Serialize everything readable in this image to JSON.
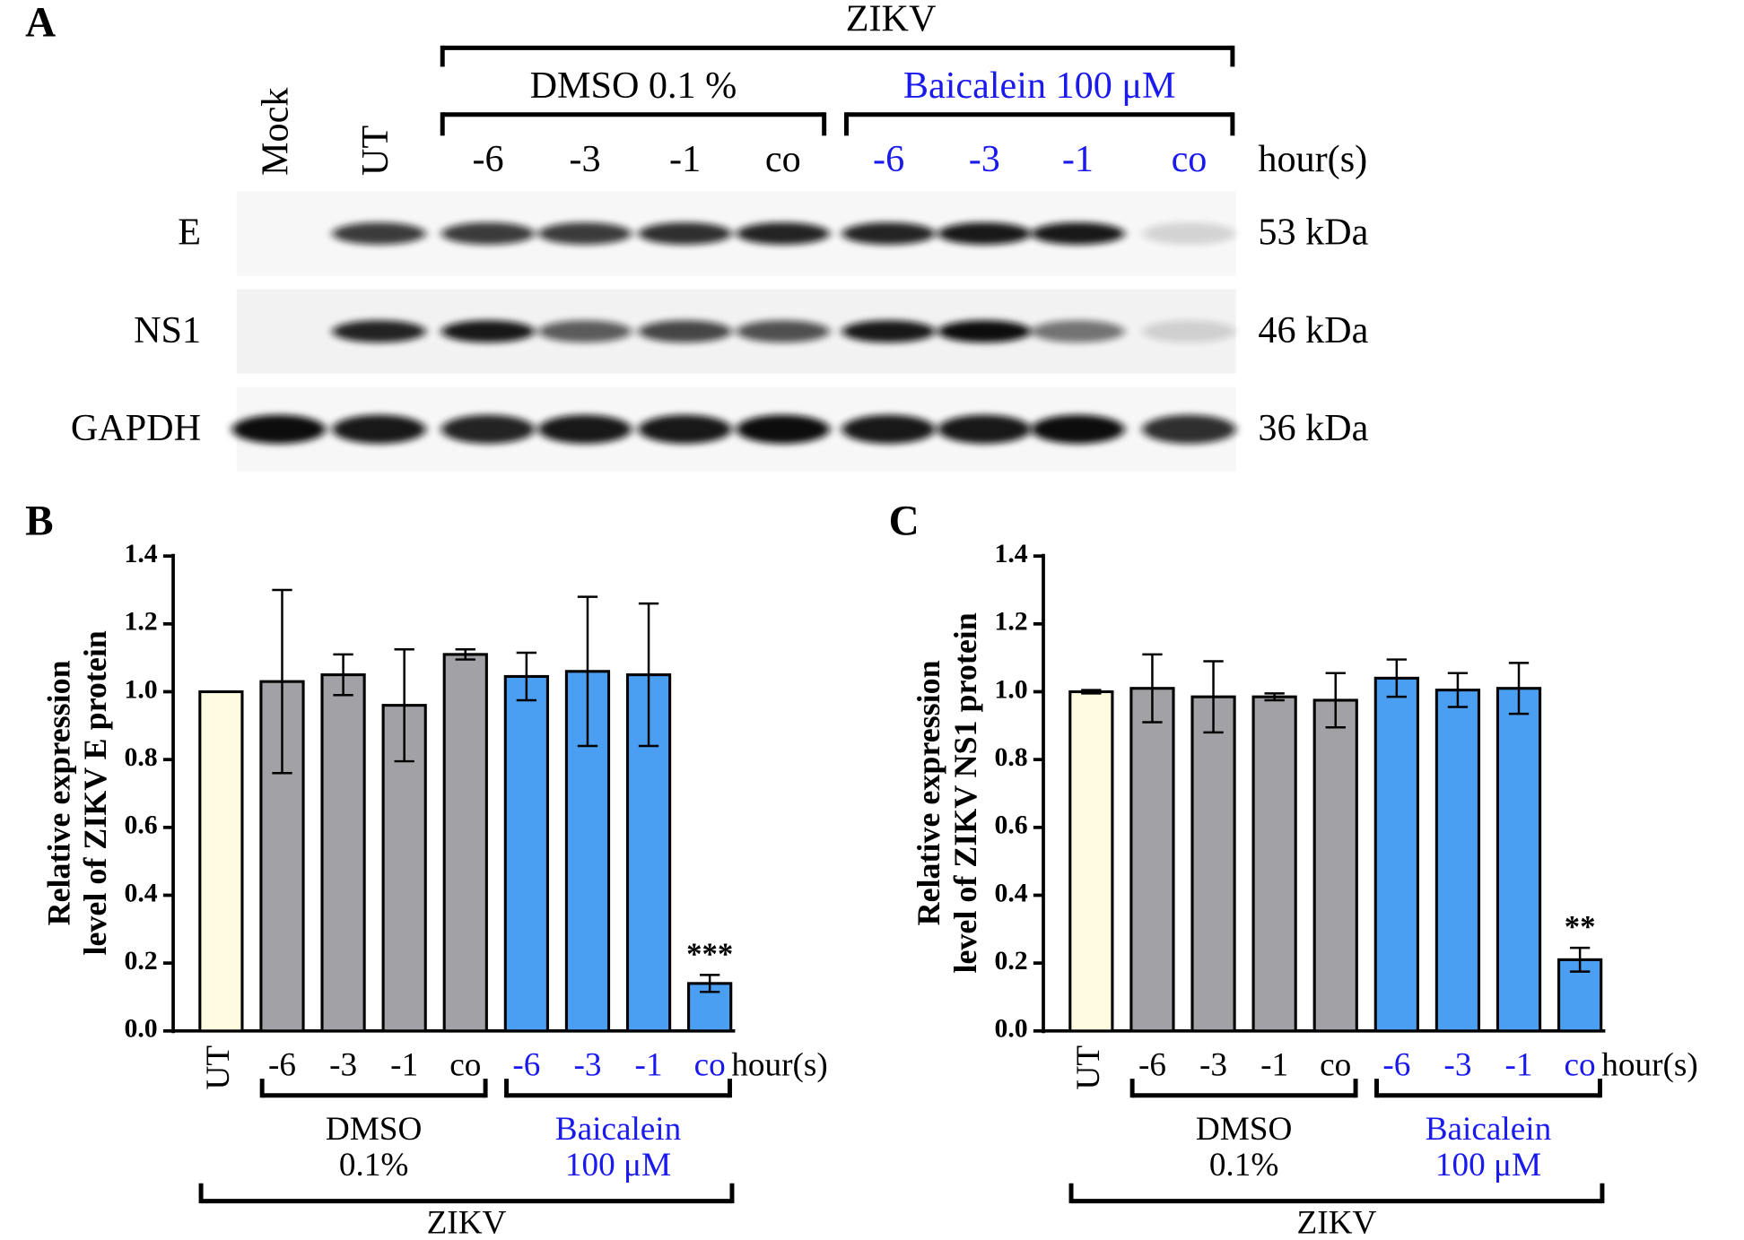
{
  "panel_labels": [
    "A",
    "B",
    "C"
  ],
  "blot": {
    "group": "ZIKV",
    "treatments": [
      "DMSO 0.1 %",
      "Baicalein 100 μM"
    ],
    "treatment_colors": [
      "#000000",
      "#1a1aee"
    ],
    "lanes": [
      "Mock",
      "UT",
      "-6",
      "-3",
      "-1",
      "co",
      "-6",
      "-3",
      "-1",
      "co"
    ],
    "lane_colors": [
      "#000000",
      "#000000",
      "#000000",
      "#000000",
      "#000000",
      "#000000",
      "#1a1aee",
      "#1a1aee",
      "#1a1aee",
      "#1a1aee"
    ],
    "time_unit": "hour(s)",
    "rows": [
      {
        "name": "E",
        "size": "53 kDa"
      },
      {
        "name": "NS1",
        "size": "46 kDa"
      },
      {
        "name": "GAPDH",
        "size": "36 kDa"
      }
    ]
  },
  "chart_data": [
    {
      "type": "bar",
      "ylabel": [
        "Relative expression",
        "level of ZIKV E protein"
      ],
      "categories": [
        "UT",
        "-6",
        "-3",
        "-1",
        "co",
        "-6",
        "-3",
        "-1",
        "co"
      ],
      "label_colors": [
        "#000000",
        "#000000",
        "#000000",
        "#000000",
        "#000000",
        "#1a1aee",
        "#1a1aee",
        "#1a1aee",
        "#1a1aee"
      ],
      "values": [
        1.0,
        1.03,
        1.05,
        0.96,
        1.11,
        1.045,
        1.06,
        1.05,
        0.14
      ],
      "errors": [
        0,
        0.27,
        0.06,
        0.165,
        0.015,
        0.07,
        0.22,
        0.21,
        0.025
      ],
      "colors": [
        "#fffbe0",
        "#a2a2a6",
        "#a2a2a6",
        "#a2a2a6",
        "#a2a2a6",
        "#4a9ff2",
        "#4a9ff2",
        "#4a9ff2",
        "#4a9ff2"
      ],
      "significance": [
        null,
        null,
        null,
        null,
        null,
        null,
        null,
        null,
        "***"
      ],
      "x_unit": "hour(s)",
      "groups": [
        {
          "lines": [
            "DMSO",
            "0.1%"
          ],
          "color": "#000000"
        },
        {
          "lines": [
            "Baicalein",
            "100 μM"
          ],
          "color": "#1a1aee"
        }
      ],
      "group_label": "ZIKV",
      "ylim": [
        0,
        1.4
      ],
      "yticks": [
        {
          "value": 0,
          "label": "0.0"
        },
        0.2,
        0.4,
        0.6,
        0.8,
        {
          "value": 1,
          "label": "1.0"
        },
        1.2,
        1.4
      ]
    },
    {
      "type": "bar",
      "ylabel": [
        "Relative expression",
        "level of ZIKV NS1 protein"
      ],
      "categories": [
        "UT",
        "-6",
        "-3",
        "-1",
        "co",
        "-6",
        "-3",
        "-1",
        "co"
      ],
      "label_colors": [
        "#000000",
        "#000000",
        "#000000",
        "#000000",
        "#000000",
        "#1a1aee",
        "#1a1aee",
        "#1a1aee",
        "#1a1aee"
      ],
      "values": [
        1.0,
        1.01,
        0.985,
        0.985,
        0.975,
        1.04,
        1.005,
        1.01,
        0.21
      ],
      "errors": [
        0.005,
        0.1,
        0.105,
        0.01,
        0.08,
        0.055,
        0.05,
        0.075,
        0.035
      ],
      "colors": [
        "#fffbe0",
        "#a2a2a6",
        "#a2a2a6",
        "#a2a2a6",
        "#a2a2a6",
        "#4a9ff2",
        "#4a9ff2",
        "#4a9ff2",
        "#4a9ff2"
      ],
      "significance": [
        null,
        null,
        null,
        null,
        null,
        null,
        null,
        null,
        "**"
      ],
      "x_unit": "hour(s)",
      "groups": [
        {
          "lines": [
            "DMSO",
            "0.1%"
          ],
          "color": "#000000"
        },
        {
          "lines": [
            "Baicalein",
            "100 μM"
          ],
          "color": "#1a1aee"
        }
      ],
      "group_label": "ZIKV",
      "ylim": [
        0,
        1.4
      ],
      "yticks": [
        {
          "value": 0,
          "label": "0.0"
        },
        0.2,
        0.4,
        0.6,
        0.8,
        {
          "value": 1,
          "label": "1.0"
        },
        1.2,
        1.4
      ]
    }
  ]
}
